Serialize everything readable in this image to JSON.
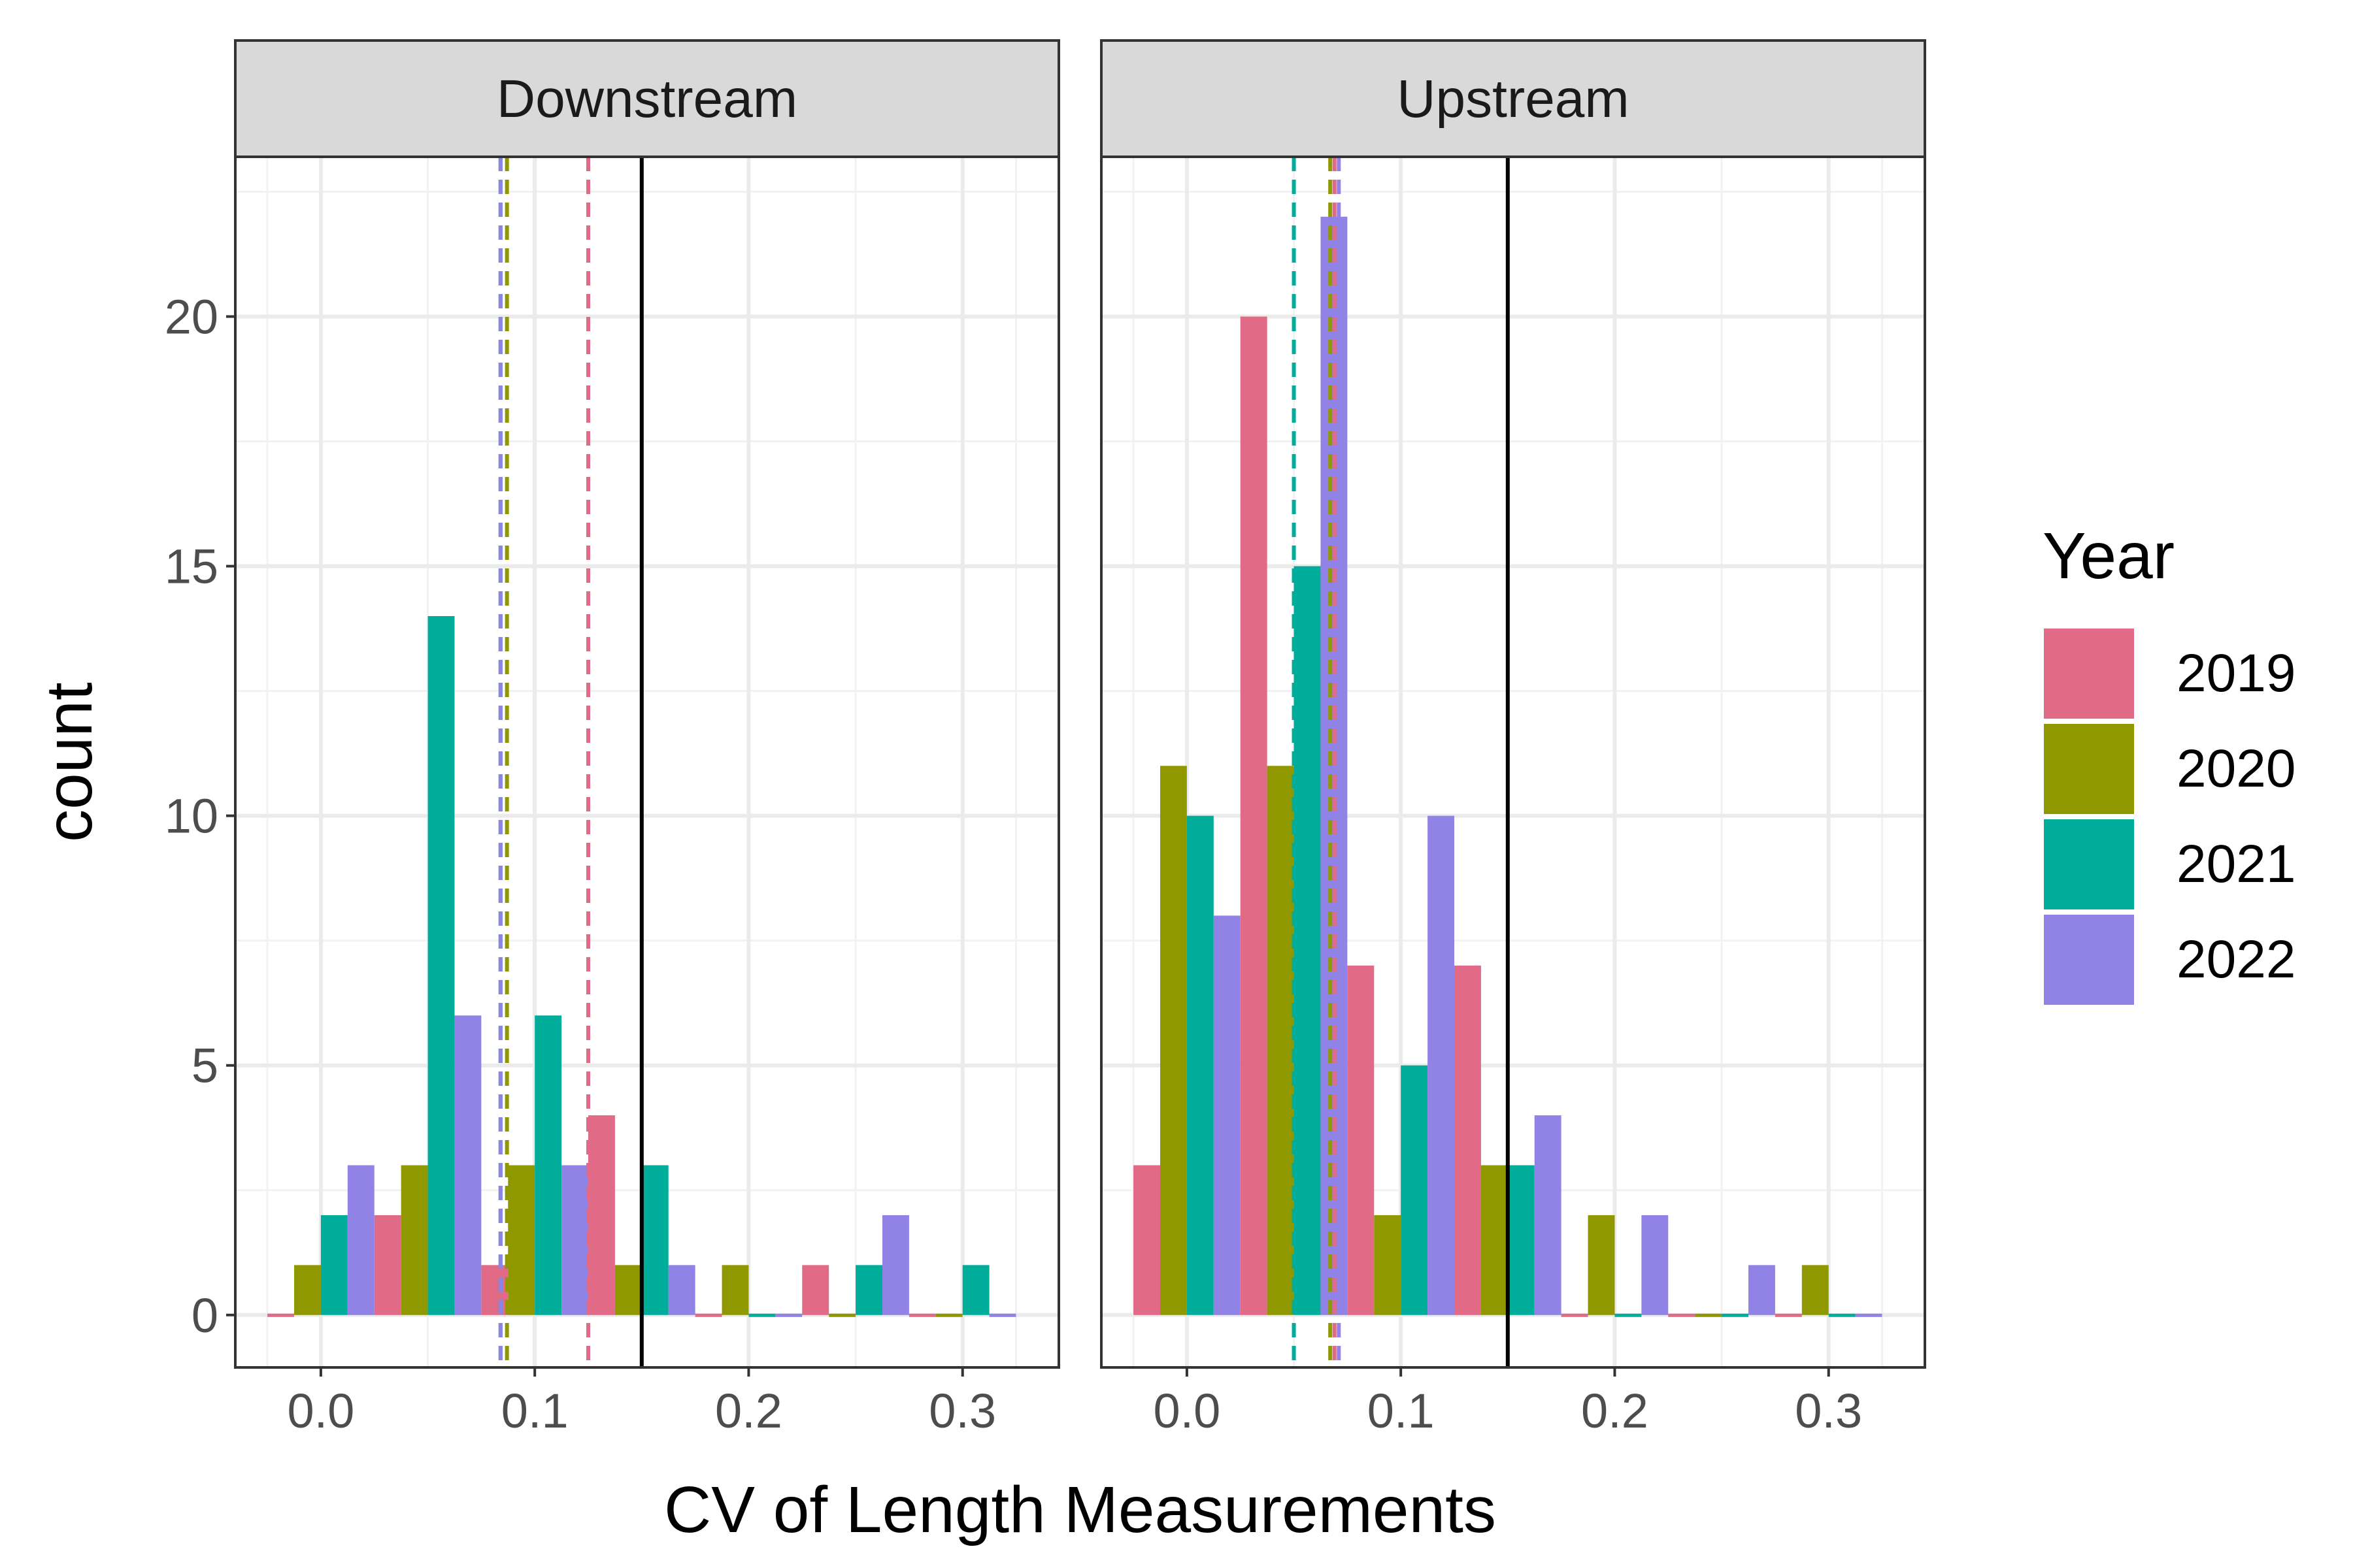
{
  "chart_data": {
    "type": "bar",
    "xlabel": "CV of Length Measurements",
    "ylabel": "count",
    "xlim": [
      -0.04,
      0.345
    ],
    "ylim": [
      -1.05,
      23.2
    ],
    "x_ticks": [
      0.0,
      0.1,
      0.2,
      0.3
    ],
    "x_tick_labels": [
      "0.0",
      "0.1",
      "0.2",
      "0.3"
    ],
    "y_ticks": [
      0,
      5,
      10,
      15,
      20
    ],
    "y_tick_labels": [
      "0",
      "5",
      "10",
      "15",
      "20"
    ],
    "grid": true,
    "legend": {
      "title": "Year",
      "position": "right",
      "entries": [
        {
          "label": "2019",
          "color": "#E16A86"
        },
        {
          "label": "2020",
          "color": "#909800"
        },
        {
          "label": "2021",
          "color": "#00AD9A"
        },
        {
          "label": "2022",
          "color": "#9183E6"
        }
      ]
    },
    "bin_width": 0.05,
    "bin_centers": [
      0.0,
      0.05,
      0.1,
      0.15,
      0.2,
      0.25,
      0.3
    ],
    "reference_line": {
      "x": 0.15,
      "style": "solid",
      "color": "#000000"
    },
    "panels": [
      {
        "label": "Downstream",
        "series": [
          {
            "name": "2019",
            "color": "#E16A86",
            "values": [
              0,
              2,
              1,
              4,
              0,
              1,
              0
            ]
          },
          {
            "name": "2020",
            "color": "#909800",
            "values": [
              1,
              3,
              3,
              1,
              1,
              0,
              0
            ]
          },
          {
            "name": "2021",
            "color": "#00AD9A",
            "values": [
              2,
              14,
              6,
              3,
              0,
              1,
              1
            ]
          },
          {
            "name": "2022",
            "color": "#9183E6",
            "values": [
              3,
              6,
              3,
              1,
              0,
              2,
              0
            ]
          }
        ],
        "means": [
          {
            "name": "2019",
            "color": "#E16A86",
            "x": 0.125
          },
          {
            "name": "2020",
            "color": "#909800",
            "x": 0.087
          },
          {
            "name": "2021",
            "color": "#00AD9A",
            "x": 0.084
          },
          {
            "name": "2022",
            "color": "#9183E6",
            "x": 0.084
          }
        ]
      },
      {
        "label": "Upstream",
        "series": [
          {
            "name": "2019",
            "color": "#E16A86",
            "values": [
              3,
              20,
              7,
              7,
              0,
              0,
              0
            ]
          },
          {
            "name": "2020",
            "color": "#909800",
            "values": [
              11,
              11,
              2,
              3,
              2,
              0,
              1
            ]
          },
          {
            "name": "2021",
            "color": "#00AD9A",
            "values": [
              10,
              15,
              5,
              3,
              0,
              0,
              0
            ]
          },
          {
            "name": "2022",
            "color": "#9183E6",
            "values": [
              8,
              22,
              10,
              4,
              2,
              1,
              0
            ]
          }
        ],
        "means": [
          {
            "name": "2021",
            "color": "#00AD9A",
            "x": 0.05
          },
          {
            "name": "2020",
            "color": "#909800",
            "x": 0.067
          },
          {
            "name": "2019",
            "color": "#E16A86",
            "x": 0.069
          },
          {
            "name": "2022",
            "color": "#9183E6",
            "x": 0.071
          }
        ]
      }
    ]
  }
}
